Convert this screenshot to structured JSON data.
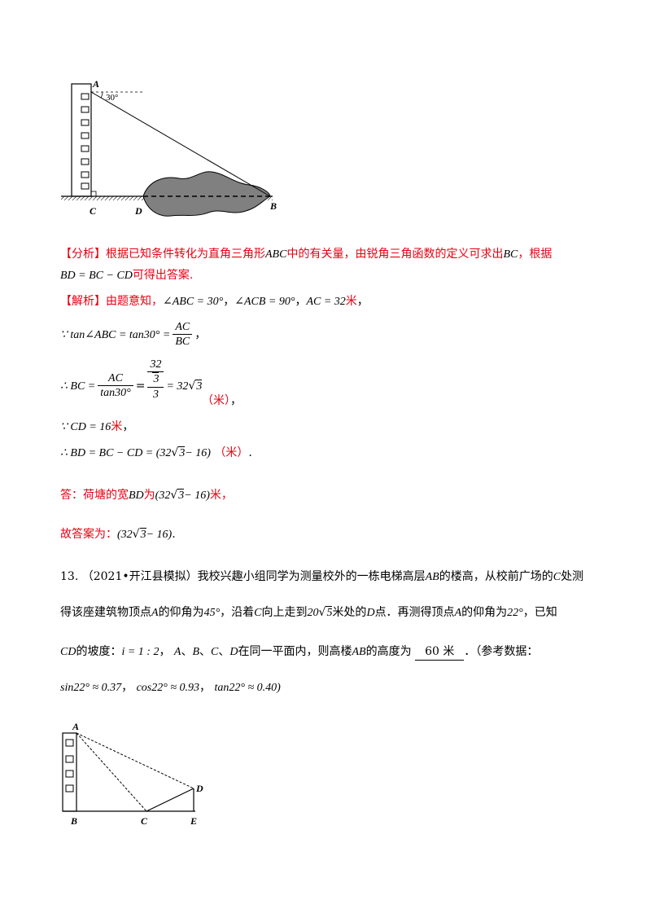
{
  "figure1": {
    "label_a": "A",
    "label_b": "B",
    "label_c": "C",
    "label_d": "D",
    "angle": "30°"
  },
  "analysis": {
    "tag": "【分析】",
    "line1_a": "根据已知条件转化为直角三角形",
    "line1_math": "ABC",
    "line1_b": "中的有关量，由锐角三角函数的定义可求出",
    "line1_math2": "BC",
    "line1_c": "，根据",
    "line2_math": "BD = BC − CD",
    "line2_text": "可得出答案."
  },
  "solution": {
    "tag": "【解析】",
    "intro": "由题意知，",
    "given1": "∠ABC = 30°",
    "given2": "∠ACB = 90°",
    "given3": "AC = 32",
    "unit": "米",
    "step1_prefix": "∵ tan∠ABC = tan30° =",
    "step1_num": "AC",
    "step1_den": "BC",
    "step2_prefix": "∴ BC =",
    "step2_num": "AC",
    "step2_den": "tan30°",
    "step2_num2": "32",
    "step2_den2_sqrt": "3",
    "step2_den2_under": "3",
    "step2_result": "= 32",
    "step2_result_sqrt": "3",
    "step2_unit": "（米）",
    "step3": "∵ CD = 16",
    "step3_unit": "米",
    "step4": "∴ BD = BC − CD = (32",
    "step4_sqrt": "3",
    "step4_end": "− 16)",
    "step4_unit": "（米）",
    "answer_prefix": "答：荷塘的宽",
    "answer_math": "BD",
    "answer_mid": "为",
    "answer_value": "(32",
    "answer_sqrt": "3",
    "answer_value_end": "− 16)",
    "answer_unit": "米，",
    "final_prefix": "故答案为：",
    "final_value": "(32",
    "final_sqrt": "3",
    "final_value_end": "− 16)"
  },
  "problem13": {
    "number": "13.",
    "source": "（2021•开江县模拟）",
    "line1_a": "我校兴趣小组同学为测量校外的一栋电梯高层",
    "line1_math": "AB",
    "line1_b": "的楼高，从校前广场的",
    "line1_math2": "C",
    "line1_c": "处测",
    "line2_a": "得该座建筑物顶点",
    "line2_math": "A",
    "line2_b": "的仰角为",
    "line2_angle": "45°",
    "line2_c": "，沿着",
    "line2_math2": "C",
    "line2_d": "向上走到",
    "line2_dist": "20",
    "line2_sqrt": "5",
    "line2_e": "米处的",
    "line2_math3": "D",
    "line2_f": "点．再测得顶点",
    "line2_math4": "A",
    "line2_g": "的仰角为",
    "line2_angle2": "22°",
    "line2_h": "，已知",
    "line3_math": "CD",
    "line3_a": "的坡度：",
    "line3_slope": "i = 1 : 2",
    "line3_b": "，",
    "line3_pts": [
      "A",
      "B",
      "C",
      "D"
    ],
    "line3_c": "在同一平面内，则高楼",
    "line3_math2": "AB",
    "line3_d": "的高度为",
    "line3_answer": "60 米",
    "line3_e": "．（参考数据：",
    "ref1": "sin22° ≈ 0.37",
    "ref2": "cos22° ≈ 0.93",
    "ref3": "tan22° ≈ 0.40)"
  },
  "figure2": {
    "label_a": "A",
    "label_b": "B",
    "label_c": "C",
    "label_d": "D",
    "label_e": "E"
  }
}
